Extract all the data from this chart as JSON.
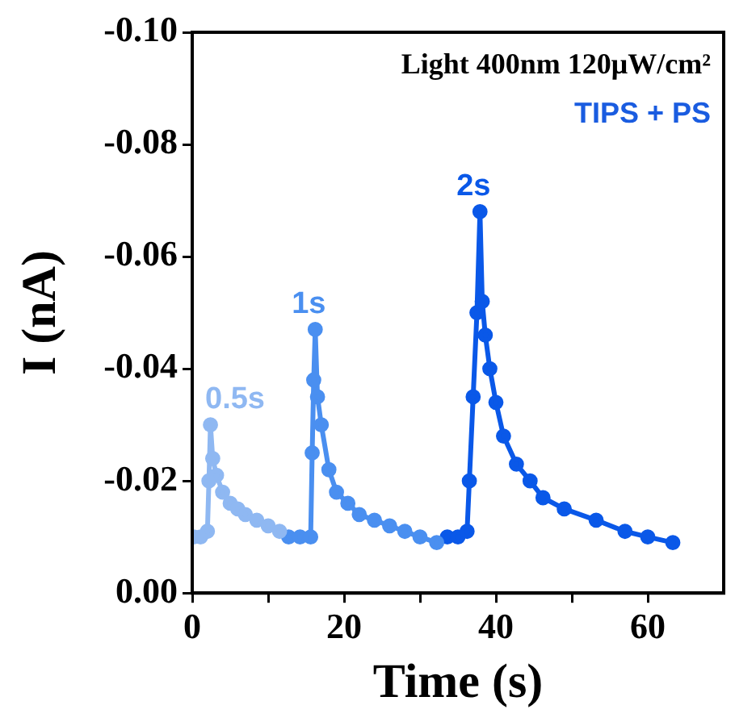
{
  "chart_data": {
    "type": "line",
    "xlabel": "Time (s)",
    "ylabel": "I (nA)",
    "annotations": [
      "Light 400nm 120μW/cm²",
      "TIPS + PS"
    ],
    "xlim": [
      0,
      70
    ],
    "xticks": [
      0,
      {
        "value": 10,
        "label": null
      },
      20,
      {
        "value": 30,
        "label": null
      },
      40,
      {
        "value": 50,
        "label": null
      },
      60
    ],
    "ylim": [
      0.0,
      -0.1
    ],
    "yticks": [
      {
        "value": -0.1,
        "label": "-0.10"
      },
      {
        "value": -0.08,
        "label": "-0.08"
      },
      {
        "value": -0.06,
        "label": "-0.06"
      },
      {
        "value": -0.04,
        "label": "-0.04"
      },
      {
        "value": -0.02,
        "label": "-0.02"
      },
      {
        "value": 0,
        "label": "0.00"
      }
    ],
    "grid": false,
    "legend": false,
    "marker": "circle",
    "line_style": "solid",
    "series": [
      {
        "name": "0.5s",
        "color": "#8fb8f2",
        "x": [
          0.2,
          1.1,
          2.0,
          2.2,
          2.4,
          2.7,
          3.2,
          4.0,
          5.0,
          6.0,
          7.0,
          8.5,
          10.0,
          11.5
        ],
        "values": [
          -0.01,
          -0.01,
          -0.011,
          -0.02,
          -0.03,
          -0.024,
          -0.021,
          -0.018,
          -0.016,
          -0.015,
          -0.014,
          -0.013,
          -0.012,
          -0.011
        ]
      },
      {
        "name": "1s",
        "color": "#4a8ff0",
        "x": [
          12.7,
          14.2,
          15.6,
          15.8,
          16.0,
          16.2,
          16.5,
          17.0,
          18.0,
          19.0,
          20.5,
          22.0,
          24.0,
          26.0,
          28.0,
          30.0,
          32.2
        ],
        "values": [
          -0.01,
          -0.01,
          -0.01,
          -0.025,
          -0.038,
          -0.047,
          -0.035,
          -0.03,
          -0.022,
          -0.018,
          -0.016,
          -0.014,
          -0.013,
          -0.012,
          -0.011,
          -0.01,
          -0.009
        ]
      },
      {
        "name": "2s",
        "color": "#0a58e8",
        "x": [
          33.6,
          35.0,
          36.2,
          36.5,
          37.0,
          37.5,
          37.9,
          38.2,
          38.6,
          39.2,
          40.0,
          41.0,
          42.7,
          44.5,
          46.2,
          49.0,
          53.2,
          57.0,
          60.0,
          63.3
        ],
        "values": [
          -0.01,
          -0.01,
          -0.011,
          -0.02,
          -0.035,
          -0.05,
          -0.068,
          -0.052,
          -0.046,
          -0.04,
          -0.034,
          -0.028,
          -0.023,
          -0.02,
          -0.017,
          -0.015,
          -0.013,
          -0.011,
          -0.01,
          -0.009
        ]
      }
    ]
  }
}
